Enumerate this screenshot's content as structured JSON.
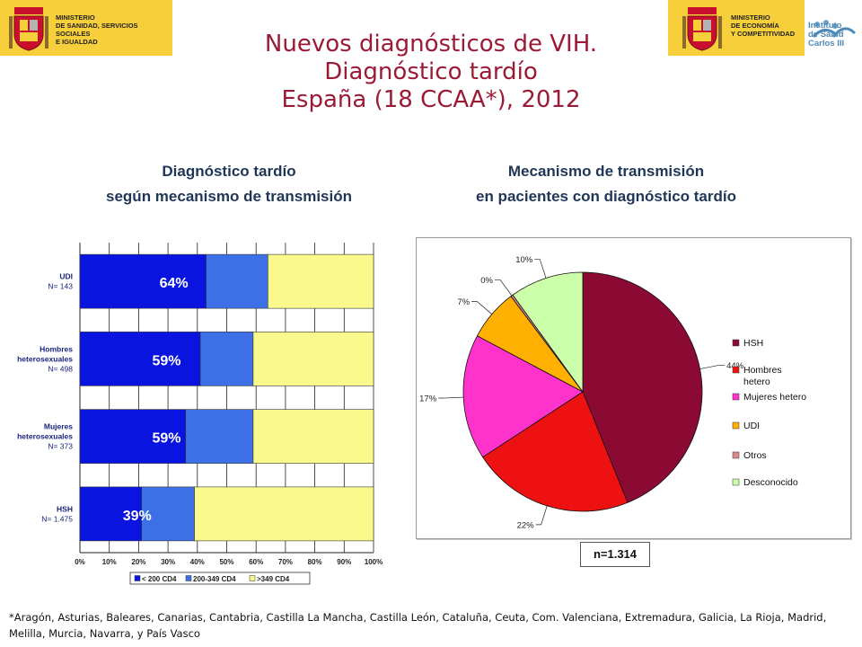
{
  "header": {
    "left_logo_text": [
      "MINISTERIO",
      "DE SANIDAD, SERVICIOS SOCIALES",
      "E IGUALDAD"
    ],
    "right_logo_text": [
      "MINISTERIO",
      "DE ECONOMÍA",
      "Y COMPETITIVIDAD"
    ],
    "institute_text": [
      "Instituto",
      "de Salud",
      "Carlos III"
    ]
  },
  "title": {
    "line1": "Nuevos diagnósticos de VIH.",
    "line2": "Diagnóstico tardío",
    "line3": "España (18 CCAA*), 2012"
  },
  "left_panel": {
    "subtitle_line1": "Diagnóstico tardío",
    "subtitle_line2": "según mecanismo de transmisión"
  },
  "right_panel": {
    "subtitle_line1": "Mecanismo de transmisión",
    "subtitle_line2": "en pacientes con diagnóstico tardío",
    "n_label": "n=1.314"
  },
  "footnote": "*Aragón, Asturias, Baleares, Canarias, Cantabria, Castilla La Mancha, Castilla León, Cataluña, Ceuta, Com. Valenciana, Extremadura, Galicia, La Rioja, Madrid,  Melilla, Murcia, Navarra, y País Vasco",
  "colors": {
    "title": "#9b1a35",
    "subtitle": "#1f3657",
    "lt200": "#0a14e0",
    "mid": "#3d6fe6",
    "gt349": "#fafa8c",
    "HSH": "#8b0a33",
    "HombresHetero": "#ee1111",
    "MujeresHetero": "#ff33cc",
    "UDI": "#ffb000",
    "Otros": "#d98a8a",
    "Desconocido": "#ccffaa"
  },
  "chart_data": [
    {
      "type": "bar",
      "orientation": "horizontal",
      "stacked": true,
      "categories": [
        {
          "label": [
            "UDI"
          ],
          "n": "N= 143"
        },
        {
          "label": [
            "Hombres",
            "heterosexuales"
          ],
          "n": "N= 498"
        },
        {
          "label": [
            "Mujeres",
            "heterosexuales"
          ],
          "n": "N= 373"
        },
        {
          "label": [
            "HSH"
          ],
          "n": "N= 1.475"
        }
      ],
      "series": [
        {
          "name": "< 200 CD4",
          "values": [
            43,
            41,
            36,
            21
          ]
        },
        {
          "name": "200-349 CD4",
          "values": [
            21,
            18,
            23,
            18
          ]
        },
        {
          "name": ">349 CD4",
          "values": [
            36,
            41,
            41,
            61
          ]
        }
      ],
      "data_labels": [
        "64%",
        "59%",
        "59%",
        "39%"
      ],
      "x_ticks": [
        "0%",
        "10%",
        "20%",
        "30%",
        "40%",
        "50%",
        "60%",
        "70%",
        "80%",
        "90%",
        "100%"
      ],
      "xlim": [
        0,
        100
      ],
      "grid": true,
      "legend_position": "bottom"
    },
    {
      "type": "pie",
      "slices": [
        {
          "name": "HSH",
          "value": 44,
          "label": "44%"
        },
        {
          "name": "Hombres hetero",
          "value": 22,
          "label": "22%"
        },
        {
          "name": "Mujeres hetero",
          "value": 17,
          "label": "17%"
        },
        {
          "name": "UDI",
          "value": 7,
          "label": "7%"
        },
        {
          "name": "Otros",
          "value": 0.3,
          "label": "0%"
        },
        {
          "name": "Desconocido",
          "value": 10,
          "label": "10%"
        }
      ],
      "legend_labels": [
        [
          "HSH"
        ],
        [
          "Hombres",
          "hetero"
        ],
        [
          "Mujeres hetero"
        ],
        [
          "UDI"
        ],
        [
          "Otros"
        ],
        [
          "Desconocido"
        ]
      ],
      "legend_position": "right"
    }
  ]
}
